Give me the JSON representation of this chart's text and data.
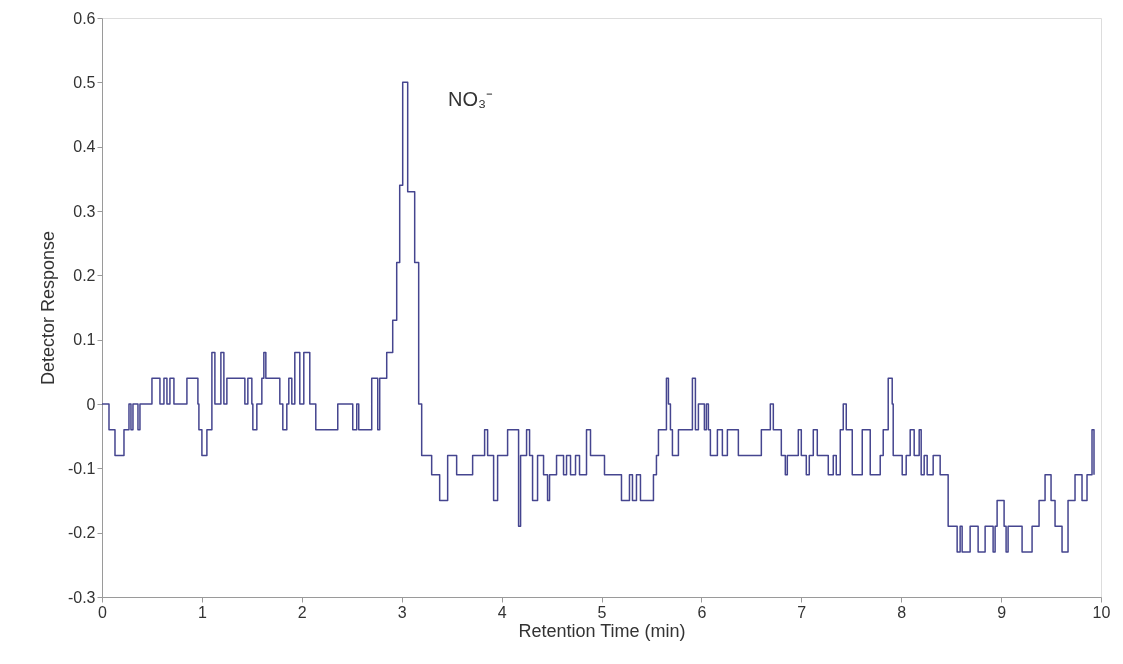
{
  "chart_data": {
    "type": "step",
    "xlabel": "Retention Time (min)",
    "ylabel": "Detector Response",
    "annotations": [
      "NO₃⁻"
    ],
    "xlim": [
      0,
      10
    ],
    "xticks": [
      0,
      1,
      2,
      3,
      4,
      5,
      6,
      7,
      8,
      9,
      10
    ],
    "ylim": [
      -0.3,
      0.6
    ],
    "yticks": [
      -0.3,
      -0.2,
      -0.1,
      0,
      0.1,
      0.2,
      0.3,
      0.4,
      0.5,
      0.6
    ],
    "grid": false,
    "marker": "none",
    "line_style": "solid",
    "series": [
      {
        "color": "#45458f",
        "x": [
          0,
          0.07,
          0.13,
          0.22,
          0.27,
          0.29,
          0.31,
          0.36,
          0.38,
          0.5,
          0.58,
          0.62,
          0.65,
          0.68,
          0.72,
          0.85,
          0.96,
          0.97,
          1.0,
          1.05,
          1.1,
          1.13,
          1.19,
          1.22,
          1.25,
          1.43,
          1.46,
          1.5,
          1.51,
          1.55,
          1.6,
          1.62,
          1.64,
          1.78,
          1.81,
          1.85,
          1.87,
          1.9,
          1.93,
          1.98,
          2.02,
          2.08,
          2.14,
          2.21,
          2.36,
          2.51,
          2.55,
          2.57,
          2.7,
          2.76,
          2.78,
          2.81,
          2.85,
          2.91,
          2.95,
          2.98,
          3.01,
          3.06,
          3.13,
          3.17,
          3.2,
          3.23,
          3.3,
          3.38,
          3.46,
          3.55,
          3.71,
          3.83,
          3.86,
          3.92,
          3.96,
          4.06,
          4.17,
          4.19,
          4.25,
          4.28,
          4.31,
          4.36,
          4.42,
          4.46,
          4.48,
          4.55,
          4.62,
          4.65,
          4.69,
          4.74,
          4.78,
          4.85,
          4.89,
          5.03,
          5.2,
          5.28,
          5.31,
          5.35,
          5.39,
          5.52,
          5.55,
          5.57,
          5.65,
          5.67,
          5.69,
          5.71,
          5.77,
          5.91,
          5.94,
          5.97,
          6.03,
          6.05,
          6.07,
          6.09,
          6.16,
          6.21,
          6.26,
          6.37,
          6.6,
          6.69,
          6.72,
          6.8,
          6.84,
          6.86,
          6.97,
          7.0,
          7.05,
          7.08,
          7.12,
          7.16,
          7.27,
          7.32,
          7.35,
          7.39,
          7.42,
          7.45,
          7.51,
          7.61,
          7.69,
          7.79,
          7.82,
          7.87,
          7.91,
          7.92,
          8.01,
          8.05,
          8.09,
          8.13,
          8.18,
          8.2,
          8.23,
          8.26,
          8.32,
          8.39,
          8.47,
          8.56,
          8.59,
          8.61,
          8.69,
          8.77,
          8.84,
          8.92,
          8.94,
          8.96,
          9.03,
          9.05,
          9.07,
          9.21,
          9.31,
          9.38,
          9.44,
          9.5,
          9.54,
          9.61,
          9.67,
          9.74,
          9.81,
          9.86,
          9.91,
          9.93
        ],
        "values": [
          0,
          -0.04,
          -0.08,
          -0.04,
          0,
          -0.04,
          0,
          -0.04,
          0,
          0.04,
          0,
          0.04,
          0,
          0.04,
          0,
          0.04,
          0,
          -0.04,
          -0.08,
          -0.04,
          0.08,
          0,
          0.08,
          0,
          0.04,
          0,
          0.04,
          0,
          -0.04,
          0,
          0.04,
          0.08,
          0.04,
          0,
          -0.04,
          0,
          0.04,
          0,
          0.08,
          0,
          0.08,
          0,
          -0.04,
          -0.04,
          0,
          -0.04,
          0,
          -0.04,
          0.04,
          -0.04,
          0.04,
          0.04,
          0.08,
          0.13,
          0.22,
          0.34,
          0.5,
          0.33,
          0.22,
          0,
          -0.08,
          -0.08,
          -0.11,
          -0.15,
          -0.08,
          -0.11,
          -0.08,
          -0.04,
          -0.08,
          -0.15,
          -0.08,
          -0.04,
          -0.19,
          -0.08,
          -0.04,
          -0.08,
          -0.15,
          -0.08,
          -0.11,
          -0.15,
          -0.11,
          -0.08,
          -0.11,
          -0.08,
          -0.11,
          -0.08,
          -0.11,
          -0.04,
          -0.08,
          -0.11,
          -0.15,
          -0.11,
          -0.15,
          -0.11,
          -0.15,
          -0.11,
          -0.08,
          -0.04,
          0.04,
          0,
          -0.04,
          -0.08,
          -0.04,
          0.04,
          -0.04,
          0,
          -0.04,
          0,
          -0.04,
          -0.08,
          -0.04,
          -0.08,
          -0.04,
          -0.08,
          -0.04,
          0,
          -0.04,
          -0.08,
          -0.11,
          -0.08,
          -0.04,
          -0.08,
          -0.11,
          -0.08,
          -0.04,
          -0.08,
          -0.11,
          -0.08,
          -0.11,
          -0.04,
          0,
          -0.04,
          -0.11,
          -0.04,
          -0.11,
          -0.08,
          -0.04,
          0.04,
          0,
          -0.08,
          -0.11,
          -0.08,
          -0.04,
          -0.08,
          -0.04,
          -0.11,
          -0.08,
          -0.11,
          -0.08,
          -0.11,
          -0.19,
          -0.23,
          -0.19,
          -0.23,
          -0.19,
          -0.23,
          -0.19,
          -0.23,
          -0.19,
          -0.15,
          -0.19,
          -0.23,
          -0.19,
          -0.23,
          -0.19,
          -0.15,
          -0.11,
          -0.15,
          -0.19,
          -0.23,
          -0.15,
          -0.11,
          -0.15,
          -0.11,
          -0.04,
          -0.11
        ]
      }
    ]
  }
}
